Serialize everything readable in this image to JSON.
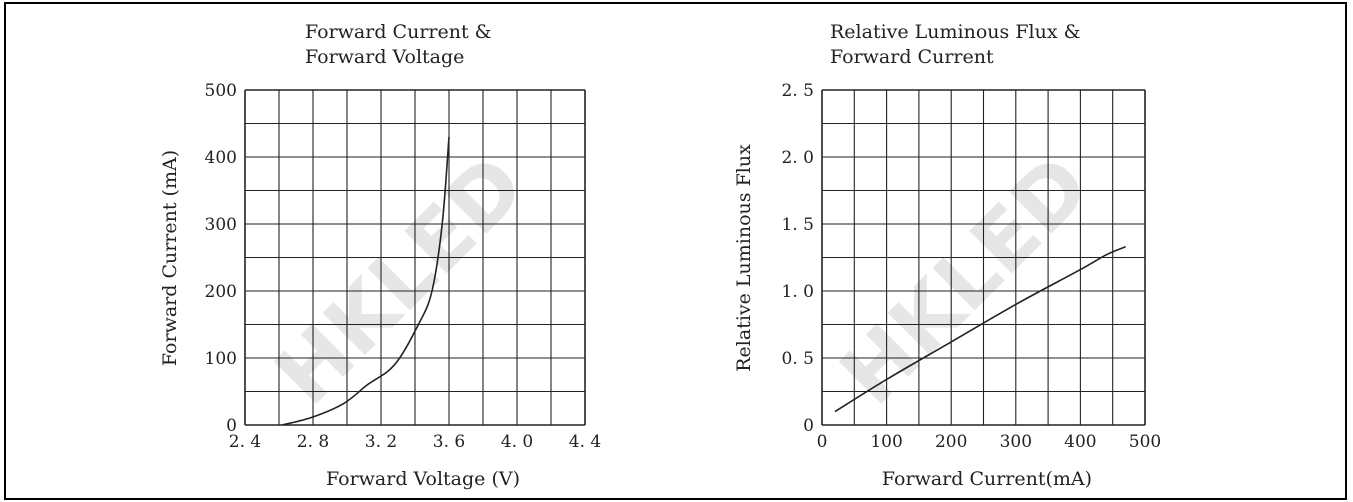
{
  "watermark": "HKLED",
  "chart_data": [
    {
      "type": "line",
      "title_line1": "Forward Current  &",
      "title_line2": "Forward Voltage",
      "xlabel": "Forward Voltage (V)",
      "ylabel": "Forward Current (mA)",
      "xlim": [
        2.4,
        4.4
      ],
      "ylim": [
        0,
        500
      ],
      "x_ticks": [
        {
          "v": 2.4,
          "label": "2. 4"
        },
        {
          "v": 2.8,
          "label": "2. 8"
        },
        {
          "v": 3.2,
          "label": "3. 2"
        },
        {
          "v": 3.6,
          "label": "3. 6"
        },
        {
          "v": 4.0,
          "label": "4. 0"
        },
        {
          "v": 4.4,
          "label": "4. 4"
        }
      ],
      "y_ticks": [
        {
          "v": 0,
          "label": "0"
        },
        {
          "v": 100,
          "label": "100"
        },
        {
          "v": 200,
          "label": "200"
        },
        {
          "v": 300,
          "label": "300"
        },
        {
          "v": 400,
          "label": "400"
        },
        {
          "v": 500,
          "label": "500"
        }
      ],
      "x_divisions": 10,
      "y_divisions": 10,
      "grid": true,
      "series": [
        {
          "x": [
            2.62,
            2.8,
            2.98,
            3.12,
            3.28,
            3.42,
            3.5,
            3.56,
            3.6
          ],
          "y": [
            0,
            12,
            32,
            60,
            90,
            150,
            200,
            300,
            430
          ]
        }
      ]
    },
    {
      "type": "line",
      "title_line1": "Relative Luminous Flux  &",
      "title_line2": "Forward Current",
      "xlabel": "Forward Current(mA)",
      "ylabel": "Relative Luminous Flux",
      "xlim": [
        0,
        500
      ],
      "ylim": [
        0,
        2.5
      ],
      "x_ticks": [
        {
          "v": 0,
          "label": "0"
        },
        {
          "v": 100,
          "label": "100"
        },
        {
          "v": 200,
          "label": "200"
        },
        {
          "v": 300,
          "label": "300"
        },
        {
          "v": 400,
          "label": "400"
        },
        {
          "v": 500,
          "label": "500"
        }
      ],
      "y_ticks": [
        {
          "v": 0,
          "label": "0"
        },
        {
          "v": 0.5,
          "label": "0. 5"
        },
        {
          "v": 1.0,
          "label": "1. 0"
        },
        {
          "v": 1.5,
          "label": "1. 5"
        },
        {
          "v": 2.0,
          "label": "2. 0"
        },
        {
          "v": 2.5,
          "label": "2. 5"
        }
      ],
      "x_divisions": 10,
      "y_divisions": 10,
      "grid": true,
      "series": [
        {
          "x": [
            20,
            100,
            200,
            300,
            400,
            440,
            470
          ],
          "y": [
            0.1,
            0.34,
            0.62,
            0.9,
            1.16,
            1.27,
            1.33
          ]
        }
      ]
    }
  ]
}
